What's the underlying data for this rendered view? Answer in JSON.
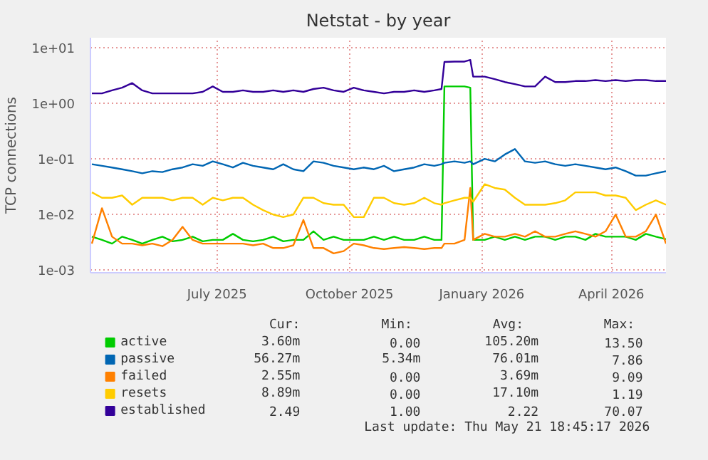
{
  "chart_data": {
    "type": "line",
    "title": "Netstat - by year",
    "ylabel": "TCP connections",
    "log": "y",
    "grid": true,
    "legend": "bottom",
    "xlim": [
      "2025-04-04",
      "2026-05-09"
    ],
    "xticks": [
      {
        "value": "2025-07-01",
        "label": "July 2025"
      },
      {
        "value": "2025-10-01",
        "label": "October 2025"
      },
      {
        "value": "2026-01-01",
        "label": "January 2026"
      },
      {
        "value": "2026-04-01",
        "label": "April 2026"
      }
    ],
    "ylim": [
      0.0009,
      15
    ],
    "yticks": [
      {
        "value": 0.001,
        "label": "1e-03"
      },
      {
        "value": 0.01,
        "label": "1e-02"
      },
      {
        "value": 0.1,
        "label": "1e-01"
      },
      {
        "value": 1,
        "label": "1e+00"
      },
      {
        "value": 10,
        "label": "1e+01"
      }
    ],
    "x": [
      "2025-04-05",
      "2025-04-12",
      "2025-04-19",
      "2025-04-26",
      "2025-05-03",
      "2025-05-10",
      "2025-05-17",
      "2025-05-24",
      "2025-05-31",
      "2025-06-07",
      "2025-06-14",
      "2025-06-21",
      "2025-06-28",
      "2025-07-05",
      "2025-07-12",
      "2025-07-19",
      "2025-07-26",
      "2025-08-02",
      "2025-08-09",
      "2025-08-16",
      "2025-08-23",
      "2025-08-30",
      "2025-09-06",
      "2025-09-13",
      "2025-09-20",
      "2025-09-27",
      "2025-10-04",
      "2025-10-11",
      "2025-10-18",
      "2025-10-25",
      "2025-11-01",
      "2025-11-08",
      "2025-11-15",
      "2025-11-22",
      "2025-11-29",
      "2025-12-04",
      "2025-12-06",
      "2025-12-13",
      "2025-12-20",
      "2025-12-24",
      "2025-12-26",
      "2026-01-03",
      "2026-01-10",
      "2026-01-17",
      "2026-01-24",
      "2026-01-31",
      "2026-02-07",
      "2026-02-14",
      "2026-02-21",
      "2026-02-28",
      "2026-03-07",
      "2026-03-14",
      "2026-03-21",
      "2026-03-28",
      "2026-04-04",
      "2026-04-11",
      "2026-04-18",
      "2026-04-25",
      "2026-05-02",
      "2026-05-09"
    ],
    "series": [
      {
        "name": "active",
        "color": "#00cc00",
        "values": [
          0.004,
          0.0035,
          0.003,
          0.004,
          0.0035,
          0.003,
          0.0035,
          0.004,
          0.0033,
          0.0035,
          0.004,
          0.0033,
          0.0035,
          0.0035,
          0.0045,
          0.0035,
          0.0033,
          0.0035,
          0.004,
          0.0033,
          0.0035,
          0.0035,
          0.005,
          0.0035,
          0.004,
          0.0035,
          0.0035,
          0.0035,
          0.004,
          0.0035,
          0.004,
          0.0035,
          0.0035,
          0.004,
          0.0035,
          0.0035,
          2.0,
          2.0,
          2.0,
          1.9,
          0.0035,
          0.0035,
          0.004,
          0.0035,
          0.004,
          0.0035,
          0.004,
          0.004,
          0.0035,
          0.004,
          0.004,
          0.0035,
          0.0045,
          0.004,
          0.004,
          0.004,
          0.0035,
          0.0045,
          0.004,
          0.0036
        ]
      },
      {
        "name": "passive",
        "color": "#0066b3",
        "values": [
          0.08,
          0.075,
          0.07,
          0.065,
          0.06,
          0.055,
          0.06,
          0.058,
          0.065,
          0.07,
          0.08,
          0.075,
          0.09,
          0.08,
          0.07,
          0.085,
          0.075,
          0.07,
          0.065,
          0.08,
          0.065,
          0.06,
          0.09,
          0.085,
          0.075,
          0.07,
          0.065,
          0.07,
          0.065,
          0.075,
          0.06,
          0.065,
          0.07,
          0.08,
          0.075,
          0.08,
          0.085,
          0.09,
          0.085,
          0.09,
          0.08,
          0.1,
          0.09,
          0.12,
          0.15,
          0.09,
          0.085,
          0.09,
          0.08,
          0.075,
          0.08,
          0.075,
          0.07,
          0.065,
          0.07,
          0.06,
          0.05,
          0.05,
          0.055,
          0.06
        ]
      },
      {
        "name": "failed",
        "color": "#ff8000",
        "values": [
          0.003,
          0.013,
          0.004,
          0.003,
          0.003,
          0.0028,
          0.003,
          0.0027,
          0.0035,
          0.006,
          0.0035,
          0.003,
          0.003,
          0.003,
          0.003,
          0.003,
          0.0028,
          0.003,
          0.0025,
          0.0025,
          0.0028,
          0.008,
          0.0025,
          0.0025,
          0.002,
          0.0022,
          0.003,
          0.0028,
          0.0025,
          0.0024,
          0.0025,
          0.0026,
          0.0025,
          0.0024,
          0.0025,
          0.0025,
          0.003,
          0.003,
          0.0035,
          0.03,
          0.0035,
          0.0045,
          0.004,
          0.004,
          0.0045,
          0.004,
          0.005,
          0.004,
          0.004,
          0.0045,
          0.005,
          0.0045,
          0.004,
          0.005,
          0.01,
          0.004,
          0.004,
          0.005,
          0.01,
          0.003
        ]
      },
      {
        "name": "resets",
        "color": "#ffcc00",
        "values": [
          0.025,
          0.02,
          0.02,
          0.022,
          0.015,
          0.02,
          0.02,
          0.02,
          0.018,
          0.02,
          0.02,
          0.015,
          0.02,
          0.018,
          0.02,
          0.02,
          0.015,
          0.012,
          0.01,
          0.009,
          0.01,
          0.02,
          0.02,
          0.016,
          0.015,
          0.015,
          0.009,
          0.009,
          0.02,
          0.02,
          0.016,
          0.015,
          0.016,
          0.02,
          0.016,
          0.015,
          0.016,
          0.018,
          0.02,
          0.02,
          0.017,
          0.035,
          0.03,
          0.028,
          0.02,
          0.015,
          0.015,
          0.015,
          0.016,
          0.018,
          0.025,
          0.025,
          0.025,
          0.022,
          0.022,
          0.02,
          0.012,
          0.015,
          0.018,
          0.015
        ]
      },
      {
        "name": "established",
        "color": "#330099",
        "values": [
          1.5,
          1.5,
          1.7,
          1.9,
          2.3,
          1.7,
          1.5,
          1.5,
          1.5,
          1.5,
          1.5,
          1.6,
          2.0,
          1.6,
          1.6,
          1.7,
          1.6,
          1.6,
          1.7,
          1.6,
          1.7,
          1.6,
          1.8,
          1.9,
          1.7,
          1.6,
          1.9,
          1.7,
          1.6,
          1.5,
          1.6,
          1.6,
          1.7,
          1.6,
          1.7,
          1.8,
          5.5,
          5.6,
          5.6,
          6.0,
          3.0,
          3.0,
          2.7,
          2.4,
          2.2,
          2.0,
          2.0,
          3.0,
          2.4,
          2.4,
          2.5,
          2.5,
          2.6,
          2.5,
          2.6,
          2.5,
          2.6,
          2.6,
          2.5,
          2.5
        ]
      }
    ],
    "annotations": [
      "Cur:",
      "Min:",
      "Avg:",
      "Max:",
      "3.60m",
      "0.00",
      "105.20m",
      "13.50",
      "56.27m",
      "5.34m",
      "76.01m",
      "7.86",
      "2.55m",
      "0.00",
      "3.69m",
      "9.09",
      "8.89m",
      "0.00",
      "17.10m",
      "1.19",
      "2.49",
      "1.00",
      "2.22",
      "70.07",
      "Last update: Thu May 21 18:45:17 2026"
    ]
  }
}
